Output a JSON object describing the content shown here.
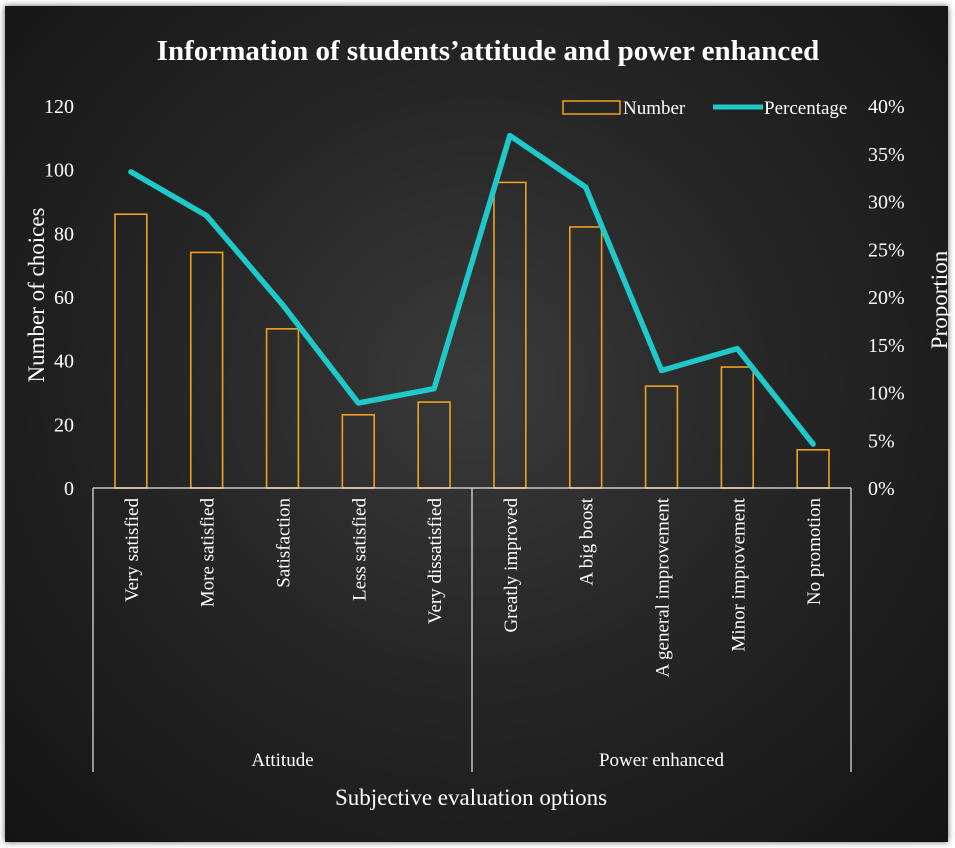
{
  "chart_data": {
    "type": "bar",
    "title": "Information of students’attitude and power enhanced",
    "xlabel": "Subjective evaluation options",
    "ylabel": "Number of choices",
    "y2label": "Proportion",
    "ylim": [
      0,
      120
    ],
    "y2lim": [
      0,
      0.4
    ],
    "yticks": [
      "0",
      "20",
      "40",
      "60",
      "80",
      "100",
      "120"
    ],
    "y2ticks": [
      "0%",
      "5%",
      "10%",
      "15%",
      "20%",
      "25%",
      "30%",
      "35%",
      "40%"
    ],
    "categories": [
      "Very satisfied",
      "More satisfied",
      "Satisfaction",
      "Less satisfied",
      "Very dissatisfied",
      "Greatly improved",
      "A big boost",
      "A general improvement",
      "Minor improvement",
      "No promotion"
    ],
    "groups": [
      {
        "label": "Attitude",
        "count": 5
      },
      {
        "label": "Power enhanced",
        "count": 5
      }
    ],
    "legend": {
      "position": "top-right",
      "number_label": "Number",
      "percentage_label": "Percentage"
    },
    "series": [
      {
        "name": "Number",
        "type": "bar",
        "axis": "left",
        "color": "#f0a020",
        "values": [
          86,
          74,
          50,
          23,
          27,
          96,
          82,
          32,
          38,
          12
        ]
      },
      {
        "name": "Percentage",
        "type": "line",
        "axis": "right",
        "color": "#1fc9c9",
        "values": [
          0.331,
          0.285,
          0.192,
          0.089,
          0.104,
          0.369,
          0.315,
          0.123,
          0.146,
          0.046
        ]
      }
    ],
    "grid": false
  }
}
